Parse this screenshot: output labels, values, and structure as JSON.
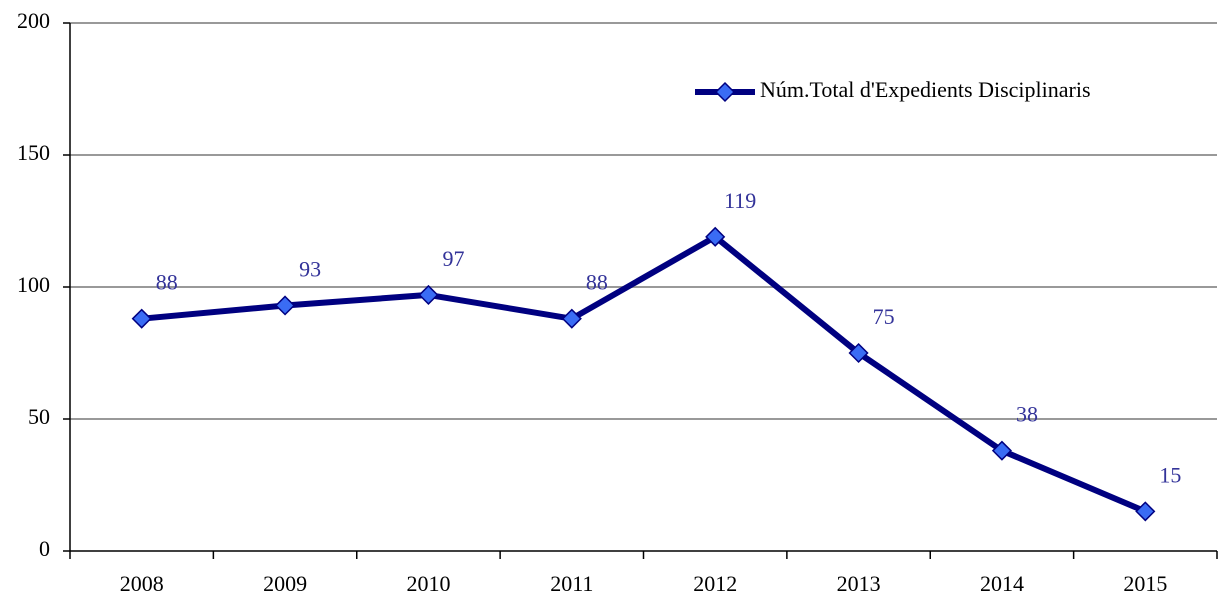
{
  "chart_data": {
    "type": "line",
    "categories": [
      "2008",
      "2009",
      "2010",
      "2011",
      "2012",
      "2013",
      "2014",
      "2015"
    ],
    "series": [
      {
        "name": "Núm.Total d'Expedients Disciplinaris",
        "color": "#000080",
        "marker_color": "#3a6cf4",
        "values": [
          88,
          93,
          97,
          88,
          119,
          75,
          38,
          15
        ]
      }
    ],
    "ylim": [
      0,
      200
    ],
    "yticks": [
      0,
      50,
      100,
      150,
      200
    ],
    "grid": true,
    "legend": "upper right",
    "data_labels": true
  }
}
